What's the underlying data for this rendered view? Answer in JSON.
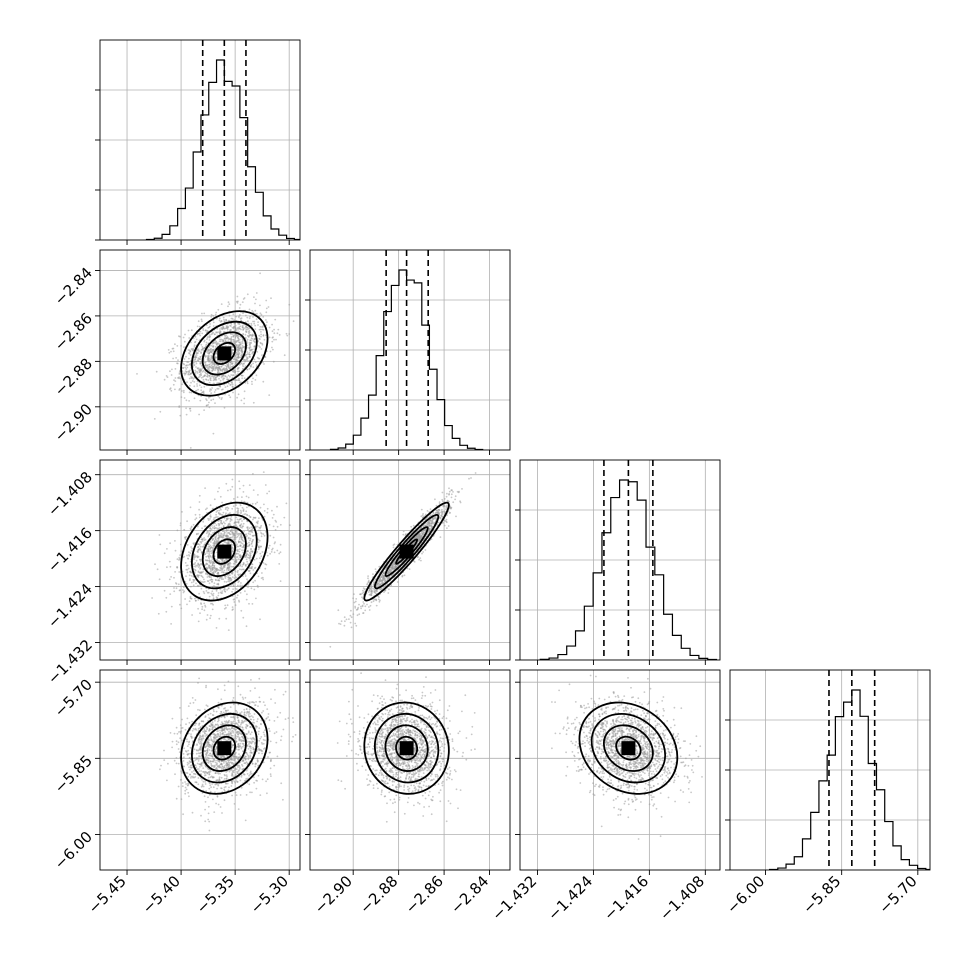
{
  "chart_data": {
    "type": "corner",
    "parameters": 4,
    "axes": [
      {
        "range": [
          -5.475,
          -5.29
        ],
        "ticks": [
          -5.45,
          -5.4,
          -5.35,
          -5.3
        ],
        "tick_labels": [
          "−5.45",
          "−5.40",
          "−5.35",
          "−5.30"
        ],
        "quantiles": [
          -5.38,
          -5.36,
          -5.34
        ],
        "mean": -5.36,
        "sd": 0.02
      },
      {
        "range": [
          -2.919,
          -2.831
        ],
        "ticks": [
          -2.9,
          -2.88,
          -2.86,
          -2.84
        ],
        "tick_labels": [
          "−2.90",
          "−2.88",
          "−2.86",
          "−2.84"
        ],
        "quantiles": [
          -2.8855,
          -2.8765,
          -2.867
        ],
        "mean": -2.8765,
        "sd": 0.0093
      },
      {
        "range": [
          -1.4345,
          -1.4059
        ],
        "ticks": [
          -1.432,
          -1.424,
          -1.416,
          -1.408
        ],
        "tick_labels": [
          "−1.432",
          "−1.424",
          "−1.416",
          "−1.408"
        ],
        "quantiles": [
          -1.4225,
          -1.419,
          -1.4155
        ],
        "mean": -1.419,
        "sd": 0.0035
      },
      {
        "range": [
          -6.07,
          -5.676
        ],
        "ticks": [
          -6.0,
          -5.85,
          -5.7
        ],
        "tick_labels": [
          "−6.00",
          "−5.85",
          "−5.70"
        ],
        "quantiles": [
          -5.875,
          -5.83,
          -5.785
        ],
        "mean": -5.83,
        "sd": 0.045
      }
    ],
    "correlations": {
      "1,0": 0.35,
      "2,0": 0.3,
      "2,1": 0.95,
      "3,0": 0.2,
      "3,1": -0.05,
      "3,2": -0.2
    },
    "grid": true,
    "title": "",
    "legend": "none"
  }
}
